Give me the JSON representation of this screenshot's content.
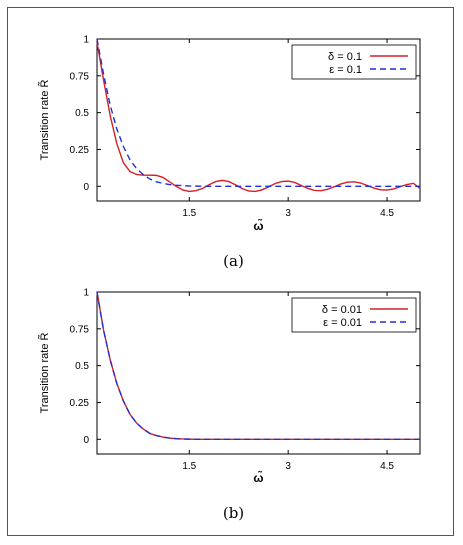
{
  "chart_data": [
    {
      "type": "line",
      "panel_label": "(a)",
      "xlabel": "ω̃",
      "ylabel": "Transition rate R̃",
      "xlim": [
        0.1,
        5.0
      ],
      "ylim": [
        -0.1,
        1.0
      ],
      "xticks": [
        1.5,
        3,
        4.5
      ],
      "xtick_labels": [
        "1.5",
        "3",
        "4.5"
      ],
      "yticks": [
        0,
        0.25,
        0.5,
        0.75,
        1
      ],
      "ytick_labels": [
        "0",
        "0.25",
        "0.5",
        "0.75",
        "1"
      ],
      "grid": false,
      "legend_position": "top-right",
      "series": [
        {
          "name": "δ = 0.1",
          "color": "#d42027",
          "style": "solid",
          "x": [
            0.1,
            0.2,
            0.3,
            0.4,
            0.5,
            0.6,
            0.7,
            0.8,
            0.9,
            1.0,
            1.1,
            1.2,
            1.3,
            1.4,
            1.5,
            1.6,
            1.7,
            1.8,
            1.9,
            2.0,
            2.1,
            2.2,
            2.3,
            2.4,
            2.5,
            2.6,
            2.7,
            2.8,
            2.9,
            3.0,
            3.1,
            3.2,
            3.3,
            3.4,
            3.5,
            3.6,
            3.7,
            3.8,
            3.9,
            4.0,
            4.1,
            4.2,
            4.3,
            4.4,
            4.5,
            4.6,
            4.7,
            4.8,
            4.9,
            5.0
          ],
          "y": [
            0.98,
            0.72,
            0.48,
            0.29,
            0.16,
            0.1,
            0.08,
            0.075,
            0.075,
            0.074,
            0.06,
            0.03,
            0.0,
            -0.025,
            -0.035,
            -0.03,
            -0.015,
            0.01,
            0.032,
            0.04,
            0.032,
            0.01,
            -0.015,
            -0.032,
            -0.035,
            -0.025,
            -0.005,
            0.018,
            0.032,
            0.035,
            0.026,
            0.005,
            -0.015,
            -0.028,
            -0.03,
            -0.02,
            -0.003,
            0.016,
            0.028,
            0.03,
            0.022,
            0.005,
            -0.012,
            -0.024,
            -0.026,
            -0.018,
            -0.003,
            0.012,
            0.02,
            -0.015
          ]
        },
        {
          "name": "ε = 0.1",
          "color": "#1f2fd8",
          "style": "dashed",
          "x": [
            0.1,
            0.2,
            0.3,
            0.4,
            0.5,
            0.6,
            0.7,
            0.8,
            0.9,
            1.0,
            1.1,
            1.2,
            1.3,
            1.4,
            1.5,
            1.6,
            1.8,
            2.0,
            2.5,
            3.0,
            3.5,
            4.0,
            4.5,
            5.0
          ],
          "y": [
            1.0,
            0.76,
            0.55,
            0.39,
            0.27,
            0.18,
            0.12,
            0.08,
            0.05,
            0.03,
            0.02,
            0.012,
            0.007,
            0.004,
            0.002,
            0.001,
            0.0,
            0.0,
            0.0,
            0.0,
            0.0,
            0.0,
            0.0,
            0.0
          ]
        }
      ]
    },
    {
      "type": "line",
      "panel_label": "(b)",
      "xlabel": "ω̃",
      "ylabel": "Transition rate R̃",
      "xlim": [
        0.1,
        5.0
      ],
      "ylim": [
        -0.1,
        1.0
      ],
      "xticks": [
        1.5,
        3,
        4.5
      ],
      "xtick_labels": [
        "1.5",
        "3",
        "4.5"
      ],
      "yticks": [
        0,
        0.25,
        0.5,
        0.75,
        1
      ],
      "ytick_labels": [
        "0",
        "0.25",
        "0.5",
        "0.75",
        "1"
      ],
      "grid": false,
      "legend_position": "top-right",
      "series": [
        {
          "name": "δ = 0.01",
          "color": "#d42027",
          "style": "solid",
          "x": [
            0.1,
            0.2,
            0.3,
            0.4,
            0.5,
            0.6,
            0.7,
            0.8,
            0.9,
            1.0,
            1.1,
            1.2,
            1.3,
            1.4,
            1.5,
            1.6,
            1.8,
            2.0,
            2.5,
            3.0,
            3.5,
            4.0,
            4.5,
            5.0
          ],
          "y": [
            1.0,
            0.74,
            0.54,
            0.38,
            0.26,
            0.17,
            0.11,
            0.07,
            0.04,
            0.025,
            0.015,
            0.008,
            0.004,
            0.002,
            0.001,
            0.0,
            0.0,
            0.0,
            0.0,
            0.0,
            0.0,
            0.0,
            0.0,
            0.0
          ]
        },
        {
          "name": "ε = 0.01",
          "color": "#1f2fd8",
          "style": "dashed",
          "x": [
            0.1,
            0.2,
            0.3,
            0.4,
            0.5,
            0.6,
            0.7,
            0.8,
            0.9,
            1.0,
            1.1,
            1.2,
            1.3,
            1.4,
            1.5,
            1.6,
            1.8,
            2.0,
            2.5,
            3.0,
            3.5,
            4.0,
            4.5,
            5.0
          ],
          "y": [
            1.0,
            0.74,
            0.54,
            0.38,
            0.26,
            0.17,
            0.11,
            0.07,
            0.04,
            0.025,
            0.015,
            0.008,
            0.004,
            0.002,
            0.001,
            0.0,
            0.0,
            0.0,
            0.0,
            0.0,
            0.0,
            0.0,
            0.0,
            0.0
          ]
        }
      ]
    }
  ]
}
